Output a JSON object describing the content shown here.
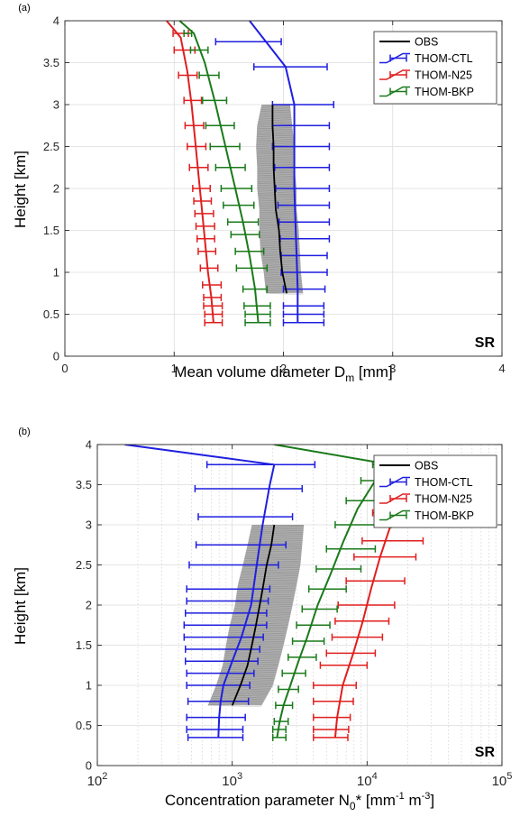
{
  "chart_data": [
    {
      "panel_label": "(a)",
      "type": "line",
      "xlabel": "Mean volume diameter D",
      "xlabel_sub": "m",
      "xlabel_unit": " [mm]",
      "ylabel": "Height [km]",
      "xscale": "linear",
      "xlim": [
        0,
        4
      ],
      "ylim": [
        0,
        4
      ],
      "xticks": [
        {
          "v": 0,
          "label": "0"
        },
        {
          "v": 1,
          "label": "1"
        },
        {
          "v": 2,
          "label": "2"
        },
        {
          "v": 3,
          "label": "3"
        },
        {
          "v": 4,
          "label": "4"
        }
      ],
      "yticks": [
        {
          "v": 0,
          "label": "0"
        },
        {
          "v": 0.5,
          "label": "0.5"
        },
        {
          "v": 1,
          "label": "1"
        },
        {
          "v": 1.5,
          "label": "1.5"
        },
        {
          "v": 2,
          "label": "2"
        },
        {
          "v": 2.5,
          "label": "2.5"
        },
        {
          "v": 3,
          "label": "3"
        },
        {
          "v": 3.5,
          "label": "3.5"
        },
        {
          "v": 4,
          "label": "4"
        }
      ],
      "grid": true,
      "legend_position": "top-right",
      "annotation": "SR",
      "obs": {
        "name": "OBS",
        "color": "#000000",
        "shade_color": "#9a9a9a",
        "y": [
          0.75,
          1.0,
          1.25,
          1.5,
          1.75,
          2.0,
          2.25,
          2.5,
          2.75,
          3.0
        ],
        "x": [
          2.03,
          1.99,
          1.97,
          1.96,
          1.93,
          1.92,
          1.91,
          1.91,
          1.9,
          1.9
        ],
        "lo": [
          1.84,
          1.82,
          1.79,
          1.78,
          1.78,
          1.76,
          1.76,
          1.75,
          1.76,
          1.8
        ],
        "hi": [
          2.18,
          2.16,
          2.15,
          2.14,
          2.12,
          2.12,
          2.1,
          2.1,
          2.08,
          2.06
        ]
      },
      "series": [
        {
          "name": "THOM-CTL",
          "color": "#1f1fe0",
          "y": [
            0.4,
            0.5,
            0.6,
            0.8,
            1.0,
            1.2,
            1.4,
            1.6,
            1.8,
            2.0,
            2.25,
            2.5,
            2.75,
            3.0,
            3.45,
            3.75
          ],
          "x": [
            2.13,
            2.13,
            2.13,
            2.13,
            2.13,
            2.12,
            2.12,
            2.11,
            2.1,
            2.1,
            2.1,
            2.1,
            2.1,
            2.1,
            2.02,
            1.67
          ],
          "err_y": [
            0.4,
            0.5,
            0.6,
            0.8,
            1.0,
            1.2,
            1.4,
            1.6,
            1.8,
            2.0,
            2.25,
            2.5,
            2.75,
            3.0,
            3.45,
            3.75
          ],
          "err_lo": [
            2.0,
            2.0,
            2.0,
            2.0,
            1.98,
            1.98,
            1.97,
            1.96,
            1.95,
            1.93,
            1.92,
            1.9,
            1.9,
            1.9,
            1.73,
            1.38
          ],
          "err_hi": [
            2.37,
            2.37,
            2.37,
            2.38,
            2.4,
            2.4,
            2.42,
            2.42,
            2.42,
            2.42,
            2.42,
            2.42,
            2.42,
            2.46,
            2.4,
            1.98
          ],
          "line_y": [
            0.4,
            0.8,
            1.2,
            1.6,
            2.0,
            2.5,
            3.0,
            3.45,
            4.0
          ],
          "line_x": [
            2.13,
            2.13,
            2.12,
            2.11,
            2.1,
            2.1,
            2.1,
            2.02,
            1.69
          ]
        },
        {
          "name": "THOM-N25",
          "color": "#e01f1f",
          "y": [
            0.4,
            0.5,
            0.6,
            0.7,
            0.85,
            1.05,
            1.25,
            1.4,
            1.55,
            1.7,
            1.85,
            2.0,
            2.25,
            2.5,
            2.75,
            3.05,
            3.35,
            3.65,
            3.85
          ],
          "x": [
            1.36,
            1.36,
            1.35,
            1.34,
            1.33,
            1.31,
            1.29,
            1.28,
            1.27,
            1.26,
            1.25,
            1.24,
            1.22,
            1.2,
            1.18,
            1.16,
            1.12,
            1.09,
            1.06
          ],
          "err_y": [
            0.4,
            0.5,
            0.6,
            0.7,
            0.85,
            1.05,
            1.25,
            1.4,
            1.55,
            1.7,
            1.85,
            2.0,
            2.25,
            2.5,
            2.75,
            3.05,
            3.35,
            3.65,
            3.85
          ],
          "err_lo": [
            1.28,
            1.28,
            1.27,
            1.27,
            1.26,
            1.24,
            1.22,
            1.21,
            1.2,
            1.19,
            1.18,
            1.17,
            1.14,
            1.12,
            1.1,
            1.09,
            1.04,
            1.0,
            0.99
          ],
          "err_hi": [
            1.44,
            1.44,
            1.44,
            1.43,
            1.43,
            1.4,
            1.38,
            1.37,
            1.37,
            1.36,
            1.34,
            1.33,
            1.31,
            1.29,
            1.27,
            1.25,
            1.21,
            1.19,
            1.13
          ],
          "line_y": [
            0.4,
            0.7,
            1.0,
            1.4,
            1.8,
            2.2,
            2.6,
            3.0,
            3.4,
            3.8,
            4.0
          ],
          "line_x": [
            1.36,
            1.34,
            1.31,
            1.28,
            1.25,
            1.22,
            1.19,
            1.16,
            1.12,
            1.06,
            0.93
          ]
        },
        {
          "name": "THOM-BKP",
          "color": "#1a7a1a",
          "y": [
            0.4,
            0.5,
            0.6,
            0.8,
            1.05,
            1.25,
            1.45,
            1.6,
            1.8,
            2.0,
            2.25,
            2.5,
            2.75,
            3.05,
            3.35,
            3.65,
            3.85
          ],
          "x": [
            1.77,
            1.77,
            1.76,
            1.74,
            1.71,
            1.68,
            1.65,
            1.63,
            1.59,
            1.56,
            1.52,
            1.47,
            1.42,
            1.37,
            1.31,
            1.25,
            1.18
          ],
          "err_y": [
            0.4,
            0.5,
            0.6,
            0.8,
            1.05,
            1.25,
            1.45,
            1.6,
            1.8,
            2.0,
            2.25,
            2.5,
            2.75,
            3.05,
            3.35,
            3.65,
            3.85
          ],
          "err_lo": [
            1.65,
            1.65,
            1.64,
            1.63,
            1.57,
            1.56,
            1.52,
            1.49,
            1.45,
            1.43,
            1.38,
            1.33,
            1.29,
            1.26,
            1.23,
            1.15,
            1.09
          ],
          "err_hi": [
            1.88,
            1.88,
            1.88,
            1.85,
            1.85,
            1.82,
            1.78,
            1.77,
            1.73,
            1.71,
            1.65,
            1.6,
            1.55,
            1.48,
            1.41,
            1.31,
            1.16
          ],
          "line_y": [
            0.4,
            0.8,
            1.2,
            1.6,
            2.0,
            2.5,
            3.0,
            3.5,
            3.85,
            4.0
          ],
          "line_x": [
            1.77,
            1.74,
            1.69,
            1.63,
            1.56,
            1.47,
            1.38,
            1.28,
            1.18,
            1.05
          ]
        }
      ]
    },
    {
      "panel_label": "(b)",
      "type": "line",
      "xlabel": "Concentration parameter N",
      "xlabel_sub": "0",
      "xlabel_unit": "* [mm",
      "xlabel_sup1": "-1",
      "xlabel_unit2": " m",
      "xlabel_sup2": "-3",
      "xlabel_end": "]",
      "ylabel": "Height [km]",
      "xscale": "log",
      "xlim": [
        100,
        100000
      ],
      "ylim": [
        0,
        4
      ],
      "xticks": [
        {
          "v": 100,
          "base": "10",
          "exp": "2"
        },
        {
          "v": 1000,
          "base": "10",
          "exp": "3"
        },
        {
          "v": 10000,
          "base": "10",
          "exp": "4"
        },
        {
          "v": 100000,
          "base": "10",
          "exp": "5"
        }
      ],
      "yticks": [
        {
          "v": 0,
          "label": "0"
        },
        {
          "v": 0.5,
          "label": "0.5"
        },
        {
          "v": 1,
          "label": "1"
        },
        {
          "v": 1.5,
          "label": "1.5"
        },
        {
          "v": 2,
          "label": "2"
        },
        {
          "v": 2.5,
          "label": "2.5"
        },
        {
          "v": 3,
          "label": "3"
        },
        {
          "v": 3.5,
          "label": "3.5"
        },
        {
          "v": 4,
          "label": "4"
        }
      ],
      "grid": true,
      "legend_position": "top-right",
      "annotation": "SR",
      "obs": {
        "name": "OBS",
        "color": "#000000",
        "shade_color": "#9a9a9a",
        "y": [
          0.75,
          1.0,
          1.25,
          1.5,
          1.75,
          2.0,
          2.25,
          2.5,
          2.75,
          3.0
        ],
        "x": [
          1000,
          1150,
          1300,
          1400,
          1500,
          1600,
          1700,
          1800,
          1950,
          2050
        ],
        "lo": [
          660,
          760,
          850,
          900,
          960,
          1050,
          1100,
          1200,
          1300,
          1400
        ],
        "hi": [
          1650,
          2000,
          2200,
          2400,
          2600,
          2800,
          3000,
          3200,
          3300,
          3400
        ]
      },
      "series": [
        {
          "name": "THOM-CTL",
          "color": "#1f1fe0",
          "y": [
            0.35,
            0.45,
            0.6,
            0.8,
            1.0,
            1.15,
            1.3,
            1.45,
            1.6,
            1.75,
            1.9,
            2.05,
            2.2,
            2.5,
            2.75,
            3.1,
            3.45,
            3.75
          ],
          "x": [
            790,
            790,
            800,
            820,
            860,
            920,
            1000,
            1080,
            1170,
            1250,
            1320,
            1400,
            1450,
            1520,
            1600,
            1700,
            1880,
            2050
          ],
          "err_y": [
            0.35,
            0.45,
            0.6,
            0.8,
            1.0,
            1.15,
            1.3,
            1.45,
            1.6,
            1.75,
            1.9,
            2.05,
            2.2,
            2.5,
            2.75,
            3.1,
            3.45,
            3.75
          ],
          "err_lo": [
            470,
            460,
            460,
            470,
            460,
            460,
            450,
            450,
            440,
            440,
            450,
            460,
            460,
            480,
            540,
            560,
            530,
            650
          ],
          "err_hi": [
            1200,
            1200,
            1250,
            1320,
            1350,
            1450,
            1550,
            1600,
            1700,
            1800,
            1800,
            1850,
            1900,
            2200,
            2500,
            2800,
            3300,
            4100
          ],
          "line_y": [
            0.35,
            0.6,
            0.8,
            1.0,
            1.3,
            1.6,
            2.0,
            2.5,
            3.0,
            3.5,
            3.75,
            4.0
          ],
          "line_x": [
            790,
            800,
            820,
            860,
            1000,
            1170,
            1380,
            1520,
            1680,
            1900,
            2050,
            160
          ]
        },
        {
          "name": "THOM-N25",
          "color": "#e01f1f",
          "y": [
            0.35,
            0.45,
            0.6,
            0.8,
            1.0,
            1.25,
            1.4,
            1.6,
            1.8,
            2.0,
            2.3,
            2.6,
            2.8,
            3.15,
            3.45,
            3.75
          ],
          "x": [
            5800,
            5800,
            6000,
            6200,
            6600,
            7300,
            7900,
            8600,
            9300,
            10000,
            11000,
            12500,
            14000,
            16000,
            18000,
            22000
          ],
          "err_y": [
            0.35,
            0.45,
            0.6,
            0.8,
            1.0,
            1.25,
            1.4,
            1.6,
            1.8,
            2.0,
            2.3,
            2.6,
            2.8,
            3.15,
            3.45,
            3.75
          ],
          "err_lo": [
            4000,
            4000,
            4000,
            4000,
            4000,
            4500,
            5000,
            5500,
            5800,
            6100,
            7000,
            8000,
            9200,
            11000,
            13500,
            16000
          ],
          "err_hi": [
            7200,
            7300,
            7500,
            7900,
            8300,
            10000,
            11500,
            13000,
            14500,
            16000,
            19000,
            23000,
            26000,
            28000,
            24000,
            22000
          ],
          "line_y": [
            0.35,
            0.6,
            1.0,
            1.4,
            1.8,
            2.2,
            2.6,
            3.0,
            3.45,
            3.75
          ],
          "line_x": [
            5800,
            6000,
            6600,
            7900,
            9300,
            10700,
            12500,
            15000,
            18000,
            22000
          ]
        },
        {
          "name": "THOM-BKP",
          "color": "#1a7a1a",
          "y": [
            0.35,
            0.45,
            0.55,
            0.75,
            0.95,
            1.15,
            1.35,
            1.55,
            1.75,
            1.95,
            2.2,
            2.45,
            2.7,
            3.0,
            3.3,
            3.55,
            3.75
          ],
          "x": [
            2150,
            2150,
            2250,
            2400,
            2600,
            2900,
            3200,
            3500,
            3900,
            4200,
            4800,
            5600,
            6500,
            7600,
            9200,
            11500,
            15000
          ],
          "err_y": [
            0.35,
            0.45,
            0.55,
            0.75,
            0.95,
            1.15,
            1.35,
            1.55,
            1.75,
            1.95,
            2.2,
            2.45,
            2.7,
            3.0,
            3.3,
            3.55,
            3.75
          ],
          "err_lo": [
            2000,
            2000,
            2050,
            2100,
            2200,
            2350,
            2600,
            2800,
            3000,
            3300,
            3700,
            4200,
            5000,
            5800,
            7000,
            9000,
            11000
          ],
          "err_hi": [
            2500,
            2500,
            2600,
            2800,
            3100,
            3500,
            4200,
            4800,
            5300,
            6000,
            7000,
            9000,
            11500,
            15000,
            15000,
            15000,
            19000
          ],
          "line_y": [
            0.35,
            0.55,
            0.75,
            1.0,
            1.3,
            1.6,
            2.0,
            2.4,
            2.8,
            3.2,
            3.55,
            3.75,
            4.0
          ],
          "line_x": [
            2150,
            2250,
            2400,
            2700,
            3100,
            3600,
            4300,
            5400,
            6700,
            8500,
            11500,
            15000,
            2050
          ]
        }
      ]
    }
  ]
}
